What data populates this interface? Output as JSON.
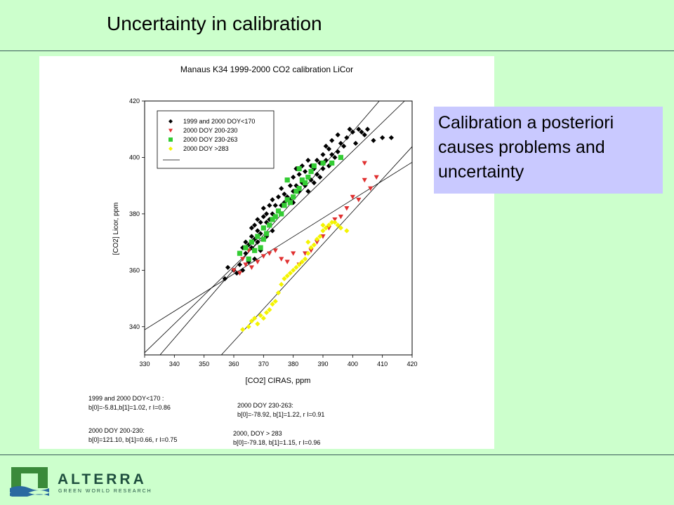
{
  "slide": {
    "title": "Uncertainty in calibration",
    "callout": "Calibration a posteriori causes problems and uncertainty"
  },
  "logo": {
    "name": "ALTERRA",
    "tagline": "GREEN WORLD RESEARCH"
  },
  "colors": {
    "background": "#ccffcc",
    "callout": "#c9c9ff",
    "rule": "#3a5a5a"
  },
  "chart_data": {
    "type": "scatter",
    "title": "Manaus K34 1999-2000 CO2 calibration LiCor",
    "xlabel": "[CO2] CIRAS, ppm",
    "ylabel": "[CO2] Licor, ppm",
    "xlim": [
      330,
      420
    ],
    "ylim": [
      330,
      420
    ],
    "xticks": [
      330,
      340,
      350,
      360,
      370,
      380,
      390,
      400,
      410,
      420
    ],
    "yticks": [
      340,
      360,
      380,
      400,
      420
    ],
    "grid": false,
    "legend_position": "top-left",
    "series": [
      {
        "name": "1999 and 2000 DOY<170",
        "marker": "diamond",
        "color": "#000000",
        "points": [
          [
            357,
            357
          ],
          [
            358,
            361
          ],
          [
            360,
            360
          ],
          [
            361,
            359
          ],
          [
            362,
            362
          ],
          [
            362,
            366
          ],
          [
            363,
            360
          ],
          [
            363,
            368
          ],
          [
            364,
            366
          ],
          [
            364,
            370
          ],
          [
            365,
            363
          ],
          [
            365,
            369
          ],
          [
            366,
            368
          ],
          [
            366,
            372
          ],
          [
            366,
            375
          ],
          [
            367,
            364
          ],
          [
            367,
            371
          ],
          [
            367,
            376
          ],
          [
            368,
            370
          ],
          [
            368,
            374
          ],
          [
            368,
            378
          ],
          [
            369,
            367
          ],
          [
            369,
            373
          ],
          [
            369,
            377
          ],
          [
            370,
            375
          ],
          [
            370,
            379
          ],
          [
            370,
            382
          ],
          [
            371,
            372
          ],
          [
            371,
            377
          ],
          [
            371,
            380
          ],
          [
            372,
            378
          ],
          [
            372,
            383
          ],
          [
            373,
            374
          ],
          [
            373,
            380
          ],
          [
            373,
            385
          ],
          [
            374,
            379
          ],
          [
            374,
            383
          ],
          [
            375,
            381
          ],
          [
            375,
            386
          ],
          [
            376,
            383
          ],
          [
            376,
            389
          ],
          [
            377,
            384
          ],
          [
            377,
            387
          ],
          [
            378,
            386
          ],
          [
            378,
            392
          ],
          [
            379,
            385
          ],
          [
            379,
            390
          ],
          [
            380,
            384
          ],
          [
            380,
            388
          ],
          [
            380,
            393
          ],
          [
            381,
            390
          ],
          [
            381,
            396
          ],
          [
            382,
            388
          ],
          [
            382,
            394
          ],
          [
            383,
            391
          ],
          [
            383,
            397
          ],
          [
            384,
            390
          ],
          [
            384,
            395
          ],
          [
            385,
            388
          ],
          [
            385,
            393
          ],
          [
            385,
            399
          ],
          [
            386,
            392
          ],
          [
            386,
            397
          ],
          [
            387,
            391
          ],
          [
            387,
            396
          ],
          [
            388,
            394
          ],
          [
            388,
            399
          ],
          [
            389,
            393
          ],
          [
            389,
            398
          ],
          [
            390,
            396
          ],
          [
            390,
            401
          ],
          [
            391,
            399
          ],
          [
            391,
            404
          ],
          [
            392,
            397
          ],
          [
            392,
            403
          ],
          [
            393,
            401
          ],
          [
            393,
            406
          ],
          [
            394,
            400
          ],
          [
            395,
            402
          ],
          [
            395,
            408
          ],
          [
            396,
            405
          ],
          [
            397,
            404
          ],
          [
            398,
            407
          ],
          [
            399,
            410
          ],
          [
            400,
            409
          ],
          [
            401,
            405
          ],
          [
            402,
            410
          ],
          [
            403,
            409
          ],
          [
            404,
            408
          ],
          [
            405,
            410
          ],
          [
            407,
            406
          ],
          [
            410,
            407
          ],
          [
            413,
            407
          ]
        ]
      },
      {
        "name": "2000 DOY 200-230",
        "marker": "triangle-down",
        "color": "#e03030",
        "points": [
          [
            360,
            360
          ],
          [
            362,
            359
          ],
          [
            363,
            364
          ],
          [
            364,
            362
          ],
          [
            365,
            367
          ],
          [
            366,
            361
          ],
          [
            368,
            363
          ],
          [
            370,
            365
          ],
          [
            372,
            366
          ],
          [
            374,
            367
          ],
          [
            376,
            364
          ],
          [
            378,
            363
          ],
          [
            380,
            366
          ],
          [
            382,
            362
          ],
          [
            384,
            366
          ],
          [
            386,
            367
          ],
          [
            388,
            370
          ],
          [
            390,
            372
          ],
          [
            392,
            375
          ],
          [
            394,
            378
          ],
          [
            396,
            379
          ],
          [
            398,
            382
          ],
          [
            400,
            386
          ],
          [
            402,
            385
          ],
          [
            404,
            392
          ],
          [
            406,
            389
          ],
          [
            408,
            393
          ],
          [
            404,
            398
          ]
        ]
      },
      {
        "name": "2000 DOY 230-263",
        "marker": "square",
        "color": "#33cc33",
        "points": [
          [
            362,
            366
          ],
          [
            364,
            368
          ],
          [
            365,
            364
          ],
          [
            366,
            370
          ],
          [
            367,
            367
          ],
          [
            368,
            372
          ],
          [
            369,
            368
          ],
          [
            370,
            371
          ],
          [
            370,
            375
          ],
          [
            371,
            373
          ],
          [
            372,
            376
          ],
          [
            373,
            378
          ],
          [
            374,
            379
          ],
          [
            375,
            381
          ],
          [
            376,
            380
          ],
          [
            377,
            383
          ],
          [
            378,
            385
          ],
          [
            379,
            384
          ],
          [
            380,
            386
          ],
          [
            381,
            388
          ],
          [
            382,
            389
          ],
          [
            383,
            392
          ],
          [
            384,
            391
          ],
          [
            385,
            393
          ],
          [
            386,
            395
          ],
          [
            387,
            397
          ],
          [
            390,
            398
          ],
          [
            393,
            398
          ],
          [
            396,
            400
          ],
          [
            382,
            396
          ],
          [
            378,
            392
          ]
        ]
      },
      {
        "name": "2000 DOY >283",
        "marker": "diamond",
        "color": "#f4f400",
        "points": [
          [
            363,
            339
          ],
          [
            365,
            340
          ],
          [
            366,
            342
          ],
          [
            367,
            343
          ],
          [
            368,
            341
          ],
          [
            369,
            344
          ],
          [
            370,
            343
          ],
          [
            371,
            345
          ],
          [
            372,
            346
          ],
          [
            373,
            348
          ],
          [
            374,
            349
          ],
          [
            375,
            352
          ],
          [
            376,
            355
          ],
          [
            377,
            357
          ],
          [
            378,
            358
          ],
          [
            379,
            359
          ],
          [
            380,
            360
          ],
          [
            381,
            361
          ],
          [
            382,
            362
          ],
          [
            383,
            363
          ],
          [
            384,
            364
          ],
          [
            385,
            366
          ],
          [
            386,
            368
          ],
          [
            387,
            369
          ],
          [
            388,
            371
          ],
          [
            389,
            372
          ],
          [
            390,
            374
          ],
          [
            391,
            375
          ],
          [
            392,
            376
          ],
          [
            393,
            377
          ],
          [
            394,
            377
          ],
          [
            395,
            376
          ],
          [
            396,
            375
          ],
          [
            398,
            374
          ],
          [
            385,
            370
          ],
          [
            390,
            376
          ]
        ]
      }
    ],
    "fit_lines": [
      {
        "label": "1999 and 2000 DOY<170 :",
        "params": "b[0]=-5.81,b[1]=1.02, r I=0.86",
        "b0": -5.81,
        "b1": 1.02
      },
      {
        "label": "2000 DOY 230-263:",
        "params": "b[0]=-78.92, b[1]=1.22, r I=0.91",
        "b0": -78.92,
        "b1": 1.22
      },
      {
        "label": "2000 DOY 200-230:",
        "params": "b[0]=121.10, b[1]=0.66, r I=0.75",
        "b0": 121.1,
        "b1": 0.66
      },
      {
        "label": "2000, DOY > 283",
        "params": "b[0]=-79.18, b[1]=1.15, r I=0.96",
        "b0": -79.18,
        "b1": 1.15
      }
    ]
  }
}
